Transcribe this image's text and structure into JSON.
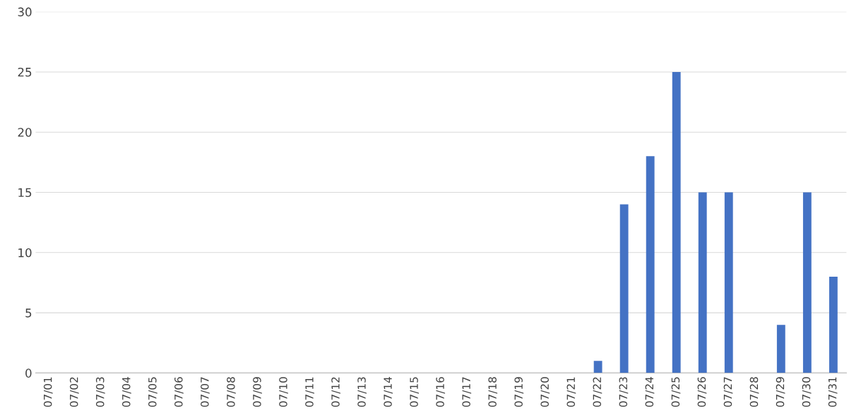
{
  "chart_data": {
    "type": "bar",
    "categories": [
      "07/01",
      "07/02",
      "07/03",
      "07/04",
      "07/05",
      "07/06",
      "07/07",
      "07/08",
      "07/09",
      "07/10",
      "07/11",
      "07/12",
      "07/13",
      "07/14",
      "07/15",
      "07/16",
      "07/17",
      "07/18",
      "07/19",
      "07/20",
      "07/21",
      "07/22",
      "07/23",
      "07/24",
      "07/25",
      "07/26",
      "07/27",
      "07/28",
      "07/29",
      "07/30",
      "07/31"
    ],
    "values": [
      0,
      0,
      0,
      0,
      0,
      0,
      0,
      0,
      0,
      0,
      0,
      0,
      0,
      0,
      0,
      0,
      0,
      0,
      0,
      0,
      0,
      1,
      14,
      18,
      25,
      15,
      15,
      0,
      4,
      15,
      8
    ],
    "color": "#4472c4",
    "ylim": [
      0,
      30
    ],
    "yticks": [
      0,
      5,
      10,
      15,
      20,
      25,
      30
    ],
    "grid": "y"
  }
}
